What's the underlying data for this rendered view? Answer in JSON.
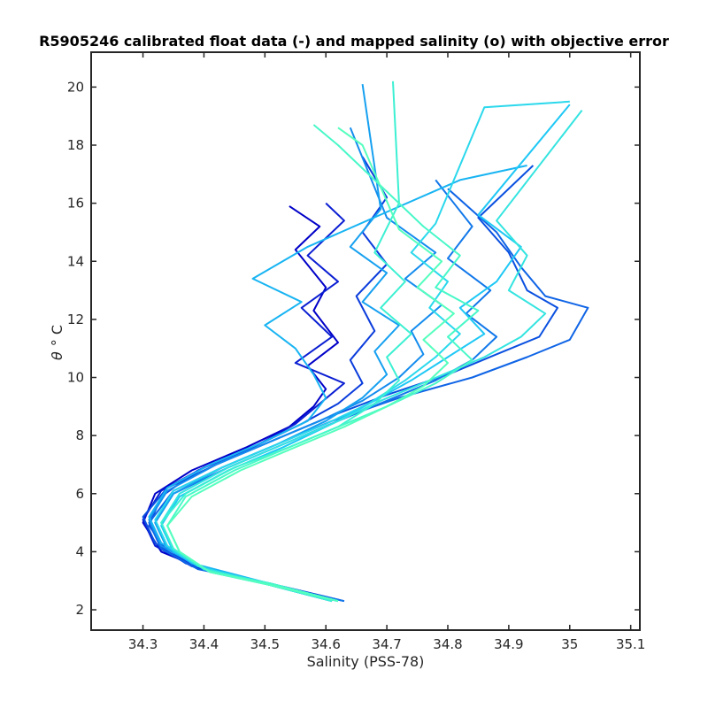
{
  "chart_data": {
    "type": "line",
    "title": "R5905246 calibrated float data (-) and mapped salinity (o) with objective error",
    "xlabel": "Salinity (PSS-78)",
    "ylabel_symbol": "θ",
    "ylabel_unit": "° C",
    "xlim": [
      34.215,
      35.115
    ],
    "ylim": [
      1.3,
      21.2
    ],
    "x_ticks": [
      {
        "value": 34.3,
        "label": "34.3"
      },
      {
        "value": 34.4,
        "label": "34.4"
      },
      {
        "value": 34.5,
        "label": "34.5"
      },
      {
        "value": 34.6,
        "label": "34.6"
      },
      {
        "value": 34.7,
        "label": "34.7"
      },
      {
        "value": 34.8,
        "label": "34.8"
      },
      {
        "value": 34.9,
        "label": "34.9"
      },
      {
        "value": 35.0,
        "label": "35"
      },
      {
        "value": 35.1,
        "label": "35.1"
      }
    ],
    "y_ticks": [
      {
        "value": 2,
        "label": "2"
      },
      {
        "value": 4,
        "label": "4"
      },
      {
        "value": 6,
        "label": "6"
      },
      {
        "value": 8,
        "label": "8"
      },
      {
        "value": 10,
        "label": "10"
      },
      {
        "value": 12,
        "label": "12"
      },
      {
        "value": 14,
        "label": "14"
      },
      {
        "value": 16,
        "label": "16"
      },
      {
        "value": 18,
        "label": "18"
      },
      {
        "value": 20,
        "label": "20"
      }
    ],
    "grid": false,
    "colormap": [
      "#0000c8",
      "#0a50e0",
      "#1496f0",
      "#1ec8f5",
      "#3cf0d2",
      "#55ffbe"
    ],
    "series": [
      {
        "color": "#0000c8",
        "points": [
          [
            34.62,
            2.3
          ],
          [
            34.52,
            2.8
          ],
          [
            34.4,
            3.4
          ],
          [
            34.33,
            4.0
          ],
          [
            34.3,
            5.0
          ],
          [
            34.32,
            6.0
          ],
          [
            34.38,
            6.8
          ],
          [
            34.47,
            7.6
          ],
          [
            34.54,
            8.3
          ],
          [
            34.58,
            9.0
          ],
          [
            34.6,
            9.6
          ],
          [
            34.57,
            10.4
          ],
          [
            34.62,
            11.2
          ],
          [
            34.58,
            12.3
          ],
          [
            34.6,
            13.1
          ],
          [
            34.55,
            14.4
          ],
          [
            34.59,
            15.2
          ],
          [
            34.54,
            15.9
          ]
        ]
      },
      {
        "color": "#0a1ed2",
        "points": [
          [
            34.61,
            2.3
          ],
          [
            34.5,
            2.9
          ],
          [
            34.38,
            3.5
          ],
          [
            34.32,
            4.2
          ],
          [
            34.3,
            5.1
          ],
          [
            34.33,
            6.1
          ],
          [
            34.4,
            6.9
          ],
          [
            34.49,
            7.7
          ],
          [
            34.55,
            8.4
          ],
          [
            34.59,
            9.1
          ],
          [
            34.63,
            9.8
          ],
          [
            34.55,
            10.5
          ],
          [
            34.61,
            11.4
          ],
          [
            34.56,
            12.4
          ],
          [
            34.62,
            13.3
          ],
          [
            34.57,
            14.2
          ],
          [
            34.63,
            15.4
          ],
          [
            34.6,
            16.0
          ]
        ]
      },
      {
        "color": "#0a3cdc",
        "points": [
          [
            34.63,
            2.3
          ],
          [
            34.53,
            2.8
          ],
          [
            34.41,
            3.3
          ],
          [
            34.34,
            4.0
          ],
          [
            34.31,
            4.9
          ],
          [
            34.33,
            5.9
          ],
          [
            34.39,
            6.8
          ],
          [
            34.48,
            7.6
          ],
          [
            34.56,
            8.4
          ],
          [
            34.62,
            9.1
          ],
          [
            34.66,
            9.8
          ],
          [
            34.64,
            10.6
          ],
          [
            34.68,
            11.6
          ],
          [
            34.65,
            12.8
          ],
          [
            34.7,
            13.9
          ],
          [
            34.66,
            15.0
          ],
          [
            34.7,
            16.2
          ],
          [
            34.66,
            17.6
          ]
        ]
      },
      {
        "color": "#0a50e0",
        "points": [
          [
            34.6,
            2.4
          ],
          [
            34.48,
            3.0
          ],
          [
            34.37,
            3.6
          ],
          [
            34.32,
            4.3
          ],
          [
            34.3,
            5.2
          ],
          [
            34.34,
            6.2
          ],
          [
            34.42,
            7.0
          ],
          [
            34.51,
            7.8
          ],
          [
            34.6,
            8.6
          ],
          [
            34.7,
            9.4
          ],
          [
            34.8,
            10.1
          ],
          [
            34.88,
            10.8
          ],
          [
            34.95,
            11.4
          ],
          [
            34.98,
            12.4
          ],
          [
            34.93,
            13.0
          ],
          [
            34.9,
            14.3
          ],
          [
            34.85,
            15.5
          ],
          [
            34.94,
            17.3
          ]
        ]
      },
      {
        "color": "#0f64e6",
        "points": [
          [
            34.62,
            2.3
          ],
          [
            34.51,
            2.9
          ],
          [
            34.39,
            3.4
          ],
          [
            34.33,
            4.1
          ],
          [
            34.31,
            5.0
          ],
          [
            34.35,
            6.1
          ],
          [
            34.43,
            6.9
          ],
          [
            34.52,
            7.7
          ],
          [
            34.61,
            8.5
          ],
          [
            34.72,
            9.3
          ],
          [
            34.84,
            10.0
          ],
          [
            34.93,
            10.7
          ],
          [
            35.0,
            11.3
          ],
          [
            35.03,
            12.4
          ],
          [
            34.96,
            12.8
          ],
          [
            34.92,
            13.8
          ],
          [
            34.88,
            15.0
          ],
          [
            34.8,
            16.5
          ]
        ]
      },
      {
        "color": "#1278ea",
        "points": [
          [
            34.63,
            2.3
          ],
          [
            34.52,
            2.8
          ],
          [
            34.4,
            3.4
          ],
          [
            34.34,
            4.1
          ],
          [
            34.32,
            5.0
          ],
          [
            34.35,
            6.0
          ],
          [
            34.44,
            6.9
          ],
          [
            34.53,
            7.7
          ],
          [
            34.62,
            8.5
          ],
          [
            34.7,
            9.2
          ],
          [
            34.78,
            9.9
          ],
          [
            34.84,
            10.6
          ],
          [
            34.88,
            11.4
          ],
          [
            34.83,
            12.2
          ],
          [
            34.87,
            13.0
          ],
          [
            34.8,
            14.1
          ],
          [
            34.84,
            15.2
          ],
          [
            34.78,
            16.8
          ]
        ]
      },
      {
        "color": "#148cee",
        "points": [
          [
            34.61,
            2.3
          ],
          [
            34.5,
            2.9
          ],
          [
            34.39,
            3.5
          ],
          [
            34.33,
            4.2
          ],
          [
            34.31,
            5.1
          ],
          [
            34.34,
            6.1
          ],
          [
            34.42,
            7.0
          ],
          [
            34.51,
            7.8
          ],
          [
            34.59,
            8.5
          ],
          [
            34.66,
            9.2
          ],
          [
            34.72,
            10.0
          ],
          [
            34.76,
            10.8
          ],
          [
            34.74,
            11.6
          ],
          [
            34.79,
            12.5
          ],
          [
            34.73,
            13.4
          ],
          [
            34.78,
            14.3
          ],
          [
            34.7,
            15.5
          ],
          [
            34.64,
            18.6
          ]
        ]
      },
      {
        "color": "#16a0f0",
        "points": [
          [
            34.62,
            2.3
          ],
          [
            34.51,
            2.9
          ],
          [
            34.4,
            3.4
          ],
          [
            34.34,
            4.1
          ],
          [
            34.32,
            5.0
          ],
          [
            34.35,
            6.0
          ],
          [
            34.43,
            6.9
          ],
          [
            34.52,
            7.7
          ],
          [
            34.6,
            8.5
          ],
          [
            34.66,
            9.3
          ],
          [
            34.7,
            10.1
          ],
          [
            34.68,
            10.9
          ],
          [
            34.72,
            11.8
          ],
          [
            34.66,
            12.6
          ],
          [
            34.7,
            13.6
          ],
          [
            34.64,
            14.5
          ],
          [
            34.69,
            15.8
          ],
          [
            34.66,
            20.1
          ]
        ]
      },
      {
        "color": "#18b4f2",
        "points": [
          [
            34.6,
            2.4
          ],
          [
            34.49,
            3.0
          ],
          [
            34.38,
            3.6
          ],
          [
            34.33,
            4.3
          ],
          [
            34.31,
            5.2
          ],
          [
            34.34,
            6.2
          ],
          [
            34.41,
            7.0
          ],
          [
            34.5,
            7.8
          ],
          [
            34.57,
            8.5
          ],
          [
            34.6,
            9.3
          ],
          [
            34.58,
            10.1
          ],
          [
            34.55,
            11.0
          ],
          [
            34.5,
            11.8
          ],
          [
            34.56,
            12.6
          ],
          [
            34.48,
            13.4
          ],
          [
            34.57,
            14.5
          ],
          [
            34.7,
            15.7
          ],
          [
            34.82,
            16.8
          ],
          [
            34.93,
            17.3
          ]
        ]
      },
      {
        "color": "#1ec8f5",
        "points": [
          [
            34.62,
            2.3
          ],
          [
            34.52,
            2.8
          ],
          [
            34.41,
            3.3
          ],
          [
            34.35,
            4.0
          ],
          [
            34.33,
            4.9
          ],
          [
            34.36,
            5.9
          ],
          [
            34.44,
            6.8
          ],
          [
            34.53,
            7.6
          ],
          [
            34.61,
            8.4
          ],
          [
            34.68,
            9.2
          ],
          [
            34.74,
            9.9
          ],
          [
            34.8,
            10.7
          ],
          [
            34.86,
            11.5
          ],
          [
            34.82,
            12.4
          ],
          [
            34.88,
            13.3
          ],
          [
            34.92,
            14.5
          ],
          [
            34.85,
            15.6
          ],
          [
            35.0,
            19.4
          ]
        ]
      },
      {
        "color": "#2ad8ec",
        "points": [
          [
            34.61,
            2.3
          ],
          [
            34.5,
            2.9
          ],
          [
            34.39,
            3.5
          ],
          [
            34.34,
            4.2
          ],
          [
            34.32,
            5.1
          ],
          [
            34.35,
            6.1
          ],
          [
            34.43,
            6.9
          ],
          [
            34.52,
            7.7
          ],
          [
            34.6,
            8.4
          ],
          [
            34.67,
            9.1
          ],
          [
            34.73,
            9.9
          ],
          [
            34.78,
            10.7
          ],
          [
            34.82,
            11.5
          ],
          [
            34.77,
            12.4
          ],
          [
            34.8,
            13.3
          ],
          [
            34.74,
            14.3
          ],
          [
            34.78,
            15.3
          ],
          [
            34.86,
            19.3
          ],
          [
            35.0,
            19.5
          ]
        ]
      },
      {
        "color": "#34e4e0",
        "points": [
          [
            34.62,
            2.3
          ],
          [
            34.51,
            2.9
          ],
          [
            34.4,
            3.4
          ],
          [
            34.35,
            4.1
          ],
          [
            34.33,
            5.0
          ],
          [
            34.36,
            6.0
          ],
          [
            34.44,
            6.9
          ],
          [
            34.53,
            7.7
          ],
          [
            34.61,
            8.4
          ],
          [
            34.69,
            9.2
          ],
          [
            34.77,
            9.9
          ],
          [
            34.86,
            10.7
          ],
          [
            34.92,
            11.4
          ],
          [
            34.96,
            12.2
          ],
          [
            34.9,
            13.0
          ],
          [
            34.93,
            14.2
          ],
          [
            34.88,
            15.4
          ],
          [
            35.02,
            19.2
          ]
        ]
      },
      {
        "color": "#3cf0d2",
        "points": [
          [
            34.61,
            2.3
          ],
          [
            34.5,
            2.9
          ],
          [
            34.4,
            3.4
          ],
          [
            34.35,
            4.1
          ],
          [
            34.33,
            5.0
          ],
          [
            34.37,
            6.0
          ],
          [
            34.45,
            6.9
          ],
          [
            34.54,
            7.6
          ],
          [
            34.62,
            8.3
          ],
          [
            34.68,
            9.1
          ],
          [
            34.72,
            9.9
          ],
          [
            34.7,
            10.7
          ],
          [
            34.74,
            11.5
          ],
          [
            34.69,
            12.4
          ],
          [
            34.73,
            13.3
          ],
          [
            34.68,
            14.3
          ],
          [
            34.72,
            16.0
          ],
          [
            34.71,
            20.2
          ]
        ]
      },
      {
        "color": "#48f8c8",
        "points": [
          [
            34.62,
            2.3
          ],
          [
            34.51,
            2.9
          ],
          [
            34.41,
            3.3
          ],
          [
            34.36,
            4.0
          ],
          [
            34.34,
            4.9
          ],
          [
            34.37,
            5.9
          ],
          [
            34.45,
            6.8
          ],
          [
            34.54,
            7.6
          ],
          [
            34.62,
            8.3
          ],
          [
            34.7,
            9.0
          ],
          [
            34.78,
            9.8
          ],
          [
            34.84,
            10.6
          ],
          [
            34.8,
            11.4
          ],
          [
            34.85,
            12.3
          ],
          [
            34.78,
            13.1
          ],
          [
            34.82,
            14.2
          ],
          [
            34.76,
            15.2
          ],
          [
            34.62,
            18.0
          ],
          [
            34.58,
            18.7
          ]
        ]
      },
      {
        "color": "#55ffbe",
        "points": [
          [
            34.62,
            2.3
          ],
          [
            34.52,
            2.8
          ],
          [
            34.41,
            3.3
          ],
          [
            34.36,
            4.0
          ],
          [
            34.34,
            4.9
          ],
          [
            34.38,
            5.9
          ],
          [
            34.46,
            6.8
          ],
          [
            34.55,
            7.6
          ],
          [
            34.63,
            8.3
          ],
          [
            34.7,
            9.0
          ],
          [
            34.76,
            9.7
          ],
          [
            34.8,
            10.5
          ],
          [
            34.76,
            11.3
          ],
          [
            34.81,
            12.2
          ],
          [
            34.75,
            13.1
          ],
          [
            34.79,
            14.0
          ],
          [
            34.72,
            15.1
          ],
          [
            34.66,
            18.0
          ],
          [
            34.62,
            18.6
          ]
        ]
      }
    ]
  }
}
